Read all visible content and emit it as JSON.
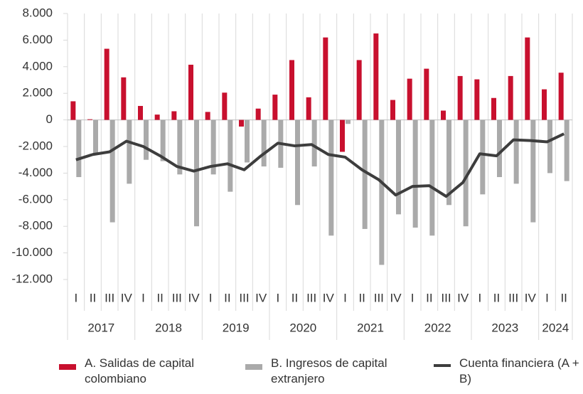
{
  "chart_data": {
    "type": "bar-line",
    "categories": [
      "I",
      "II",
      "III",
      "IV",
      "I",
      "II",
      "III",
      "IV",
      "I",
      "II",
      "III",
      "IV",
      "I",
      "II",
      "III",
      "IV",
      "I",
      "II",
      "III",
      "IV",
      "I",
      "II",
      "III",
      "IV",
      "I",
      "II",
      "III",
      "IV",
      "I",
      "II"
    ],
    "years": [
      "2017",
      "2018",
      "2019",
      "2020",
      "2021",
      "2022",
      "2023",
      "2024"
    ],
    "series": [
      {
        "name": "A. Salidas de capital colombiano",
        "type": "bar",
        "color": "#c8102e",
        "values": [
          1400,
          50,
          5350,
          3200,
          1050,
          400,
          650,
          4150,
          600,
          2050,
          -500,
          850,
          1900,
          4500,
          1700,
          6200,
          -2400,
          4500,
          6500,
          1500,
          3100,
          3850,
          700,
          3300,
          3050,
          1650,
          3300,
          6200,
          2300,
          3550
        ]
      },
      {
        "name": "B. Ingresos de capital extranjero",
        "type": "bar",
        "color": "#aaaaaa",
        "values": [
          -4300,
          -2500,
          -7700,
          -4800,
          -3000,
          -3100,
          -4100,
          -8000,
          -4100,
          -5400,
          -3200,
          -3500,
          -3600,
          -6400,
          -3500,
          -8700,
          -300,
          -8200,
          -10900,
          -7100,
          -8100,
          -8700,
          -6400,
          -8000,
          -5600,
          -4300,
          -4800,
          -7700,
          -4000,
          -4600
        ]
      },
      {
        "name": "Cuenta financiera (A + B)",
        "type": "line",
        "color": "#3d3d3d",
        "values": [
          -3000,
          -2600,
          -2400,
          -1600,
          -2000,
          -2700,
          -3500,
          -3850,
          -3500,
          -3300,
          -3750,
          -2700,
          -1750,
          -1950,
          -1850,
          -2600,
          -2800,
          -3750,
          -4500,
          -5650,
          -5000,
          -4950,
          -5750,
          -4700,
          -2550,
          -2700,
          -1500,
          -1550,
          -1650,
          -1050
        ]
      }
    ],
    "ylim": [
      -12000,
      8000
    ],
    "yticks": [
      {
        "value": -12000,
        "label": "-12.000"
      },
      {
        "value": -10000,
        "label": "-10.000"
      },
      {
        "value": -8000,
        "label": "-8.000"
      },
      {
        "value": -6000,
        "label": "-6.000"
      },
      {
        "value": -4000,
        "label": "-4.000"
      },
      {
        "value": -2000,
        "label": "-2.000"
      },
      0,
      {
        "value": 2000,
        "label": "2.000"
      },
      {
        "value": 4000,
        "label": "4.000"
      },
      {
        "value": 6000,
        "label": "6.000"
      },
      {
        "value": 8000,
        "label": "8.000"
      }
    ]
  }
}
